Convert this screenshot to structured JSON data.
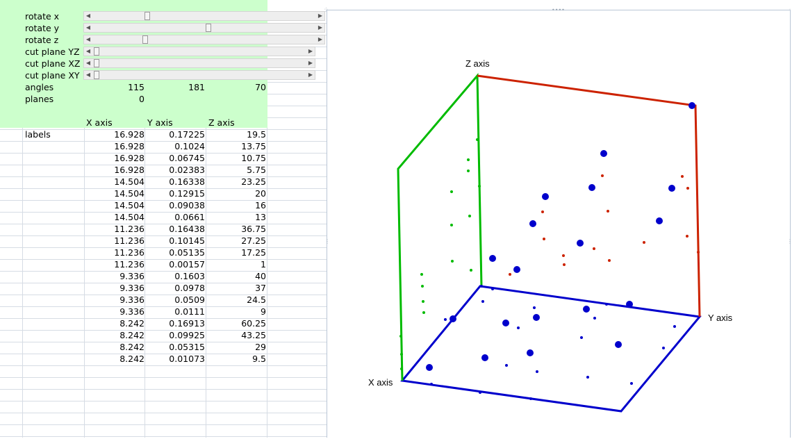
{
  "controls": [
    {
      "label": "rotate x",
      "thumb": 0.23
    },
    {
      "label": "rotate y",
      "thumb": 0.51
    },
    {
      "label": "rotate z",
      "thumb": 0.22
    },
    {
      "label": "cut plane YZ",
      "thumb": 0.0
    },
    {
      "label": "cut plane XZ",
      "thumb": 0.0
    },
    {
      "label": "cut plane XY",
      "thumb": 0.0
    }
  ],
  "angles": {
    "label": "angles",
    "v1": "115",
    "v2": "181",
    "v3": "70"
  },
  "planes": {
    "label": "planes",
    "v1": "0"
  },
  "table": {
    "headers": [
      "X axis",
      "Y axis",
      "Z axis"
    ],
    "row_label": "labels",
    "rows": [
      [
        "16.928",
        "0.17225",
        "19.5"
      ],
      [
        "16.928",
        "0.1024",
        "13.75"
      ],
      [
        "16.928",
        "0.06745",
        "10.75"
      ],
      [
        "16.928",
        "0.02383",
        "5.75"
      ],
      [
        "14.504",
        "0.16338",
        "23.25"
      ],
      [
        "14.504",
        "0.12915",
        "20"
      ],
      [
        "14.504",
        "0.09038",
        "16"
      ],
      [
        "14.504",
        "0.0661",
        "13"
      ],
      [
        "11.236",
        "0.16438",
        "36.75"
      ],
      [
        "11.236",
        "0.10145",
        "27.25"
      ],
      [
        "11.236",
        "0.05135",
        "17.25"
      ],
      [
        "11.236",
        "0.00157",
        "1"
      ],
      [
        "9.336",
        "0.1603",
        "40"
      ],
      [
        "9.336",
        "0.0978",
        "37"
      ],
      [
        "9.336",
        "0.0509",
        "24.5"
      ],
      [
        "9.336",
        "0.0111",
        "9"
      ],
      [
        "8.242",
        "0.16913",
        "60.25"
      ],
      [
        "8.242",
        "0.09925",
        "43.25"
      ],
      [
        "8.242",
        "0.05315",
        "29"
      ],
      [
        "8.242",
        "0.01073",
        "9.5"
      ]
    ]
  },
  "chart": {
    "x_label": "X axis",
    "y_label": "Y axis",
    "z_label": "Z axis",
    "colors": {
      "xy": "#0000cc",
      "xz": "#00bb00",
      "yz": "#cc2200",
      "points": "#0000cc"
    }
  }
}
